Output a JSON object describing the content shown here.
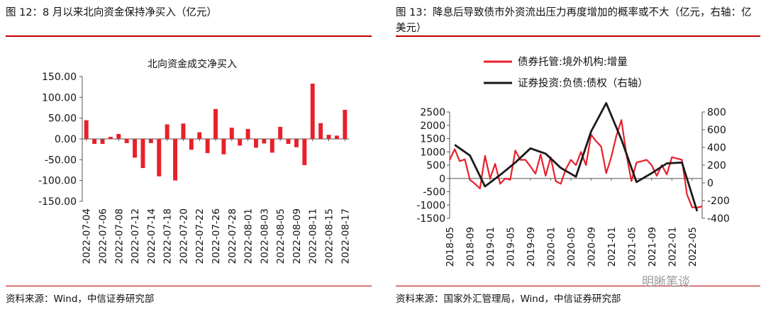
{
  "left": {
    "figure_title": "图 12：8 月以来北向资金保持净买入（亿元）",
    "source": "资料来源：Wind，中信证券研究部"
  },
  "right": {
    "figure_title": "图 13：降息后导致债市外资流出压力再度增加的概率或不大（亿元，右轴：亿美元）",
    "source": "资料来源：国家外汇管理局，Wind，中信证券研究部"
  },
  "watermark": "明晰笔谈",
  "colors": {
    "accent_red": "#c00000",
    "series_red": "#e8202a",
    "series_black": "#1a1a1a"
  },
  "chart_data": [
    {
      "type": "bar",
      "title": "北向资金成交净买入",
      "xlabel": "",
      "ylabel": "",
      "ylim": [
        -150,
        150
      ],
      "yticks": [
        150,
        100,
        50,
        0,
        -50,
        -100,
        -150
      ],
      "ytick_labels": [
        "150.00",
        "100.00",
        "50.00",
        "0.00",
        "-50.00",
        "-100.00",
        "-150.00"
      ],
      "grid": false,
      "tick_labels": [
        "2022-07-04",
        "2022-07-06",
        "2022-07-08",
        "2022-07-12",
        "2022-07-14",
        "2022-07-18",
        "2022-07-20",
        "2022-07-22",
        "2022-07-26",
        "2022-07-28",
        "2022-08-01",
        "2022-08-03",
        "2022-08-05",
        "2022-08-09",
        "2022-08-11",
        "2022-08-15",
        "2022-08-17"
      ],
      "values": [
        45,
        -12,
        -12,
        5,
        12,
        -10,
        -45,
        -70,
        -10,
        -90,
        35,
        -100,
        37,
        -26,
        16,
        -34,
        72,
        -37,
        27,
        -16,
        24,
        -21,
        -11,
        -33,
        29,
        -12,
        -20,
        -63,
        133,
        38,
        10,
        8,
        70
      ],
      "color": "#e8202a"
    },
    {
      "type": "line",
      "y_left": {
        "lim": [
          -1500,
          2500
        ],
        "ticks": [
          2500,
          2000,
          1500,
          1000,
          500,
          0,
          -500,
          -1000,
          -1500
        ]
      },
      "y_right": {
        "lim": [
          -400,
          800
        ],
        "ticks": [
          800,
          600,
          400,
          200,
          0,
          -200,
          -400
        ]
      },
      "x_tick_labels": [
        "2018-05",
        "2018-09",
        "2019-01",
        "2019-05",
        "2019-09",
        "2020-01",
        "2020-05",
        "2020-09",
        "2021-01",
        "2021-05",
        "2021-09",
        "2022-01",
        "2022-05"
      ],
      "x_range": [
        "2018-05",
        "2022-07"
      ],
      "legend_position": "top-left",
      "series": [
        {
          "name": "债券托管:境外机构:增量",
          "axis": "left",
          "color": "#e8202a",
          "x": [
            "2018-05",
            "2018-06",
            "2018-07",
            "2018-08",
            "2018-09",
            "2018-10",
            "2018-11",
            "2018-12",
            "2019-01",
            "2019-02",
            "2019-03",
            "2019-04",
            "2019-05",
            "2019-06",
            "2019-07",
            "2019-08",
            "2019-09",
            "2019-10",
            "2019-11",
            "2019-12",
            "2020-01",
            "2020-02",
            "2020-03",
            "2020-04",
            "2020-05",
            "2020-06",
            "2020-07",
            "2020-08",
            "2020-09",
            "2020-10",
            "2020-11",
            "2020-12",
            "2021-01",
            "2021-02",
            "2021-03",
            "2021-04",
            "2021-05",
            "2021-06",
            "2021-07",
            "2021-08",
            "2021-09",
            "2021-10",
            "2021-11",
            "2021-12",
            "2022-01",
            "2022-02",
            "2022-03",
            "2022-04",
            "2022-05",
            "2022-06",
            "2022-07"
          ],
          "values": [
            700,
            1100,
            650,
            720,
            -50,
            -200,
            -380,
            850,
            0,
            550,
            -200,
            0,
            -50,
            1050,
            700,
            700,
            450,
            180,
            900,
            100,
            800,
            -100,
            -200,
            350,
            700,
            500,
            1000,
            500,
            1650,
            1400,
            1200,
            200,
            800,
            1600,
            2200,
            900,
            -100,
            600,
            650,
            700,
            500,
            100,
            500,
            150,
            800,
            750,
            700,
            -600,
            -1080,
            -1100,
            -1050
          ]
        },
        {
          "name": "证券投资:负债:债权（右轴）",
          "axis": "right",
          "color": "#1a1a1a",
          "x": [
            "2018-06",
            "2018-09",
            "2018-12",
            "2019-03",
            "2019-06",
            "2019-09",
            "2019-12",
            "2020-03",
            "2020-06",
            "2020-09",
            "2020-12",
            "2021-03",
            "2021-06",
            "2021-09",
            "2021-12",
            "2022-03",
            "2022-06"
          ],
          "values": [
            430,
            310,
            -40,
            90,
            230,
            390,
            330,
            170,
            70,
            580,
            900,
            490,
            10,
            110,
            220,
            230,
            -320
          ]
        }
      ]
    }
  ]
}
